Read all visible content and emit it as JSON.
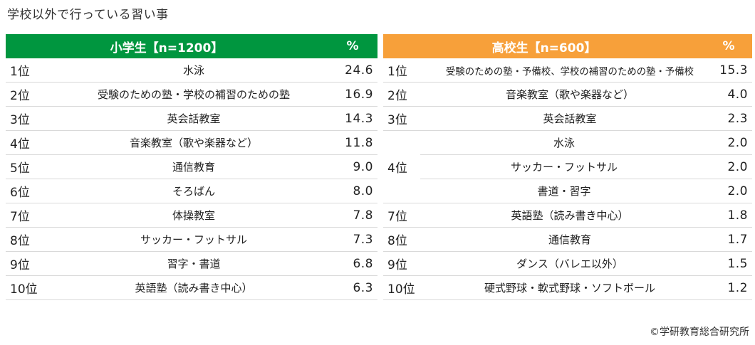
{
  "page_title": "学校以外で行っている習い事",
  "copyright": "©学研教育総合研究所",
  "colors": {
    "elementary_header": "#00963f",
    "highschool_header": "#f7a03a"
  },
  "chart_data": [
    {
      "type": "table",
      "title": "小学生【n=1200】",
      "value_header": "%",
      "rows": [
        {
          "rank": "1位",
          "item": "水泳",
          "value": "24.6"
        },
        {
          "rank": "2位",
          "item": "受験のための塾・学校の補習のための塾",
          "value": "16.9"
        },
        {
          "rank": "3位",
          "item": "英会話教室",
          "value": "14.3"
        },
        {
          "rank": "4位",
          "item": "音楽教室（歌や楽器など）",
          "value": "11.8"
        },
        {
          "rank": "5位",
          "item": "通信教育",
          "value": "9.0"
        },
        {
          "rank": "6位",
          "item": "そろばん",
          "value": "8.0"
        },
        {
          "rank": "7位",
          "item": "体操教室",
          "value": "7.8"
        },
        {
          "rank": "8位",
          "item": "サッカー・フットサル",
          "value": "7.3"
        },
        {
          "rank": "9位",
          "item": "習字・書道",
          "value": "6.8"
        },
        {
          "rank": "10位",
          "item": "英語塾（読み書き中心）",
          "value": "6.3"
        }
      ]
    },
    {
      "type": "table",
      "title": "高校生【n=600】",
      "value_header": "%",
      "rows": [
        {
          "rank": "1位",
          "item": "受験のための塾・予備校、学校の補習のための塾・予備校",
          "value": "15.3"
        },
        {
          "rank": "2位",
          "item": "音楽教室（歌や楽器など）",
          "value": "4.0"
        },
        {
          "rank": "3位",
          "item": "英会話教室",
          "value": "2.3"
        },
        {
          "rank": "4位",
          "item": "水泳",
          "value": "2.0"
        },
        {
          "rank": "",
          "item": "サッカー・フットサル",
          "value": "2.0"
        },
        {
          "rank": "",
          "item": "書道・習字",
          "value": "2.0"
        },
        {
          "rank": "7位",
          "item": "英語塾（読み書き中心）",
          "value": "1.8"
        },
        {
          "rank": "8位",
          "item": "通信教育",
          "value": "1.7"
        },
        {
          "rank": "9位",
          "item": "ダンス（バレエ以外）",
          "value": "1.5"
        },
        {
          "rank": "10位",
          "item": "硬式野球・軟式野球・ソフトボール",
          "value": "1.2"
        }
      ]
    }
  ]
}
